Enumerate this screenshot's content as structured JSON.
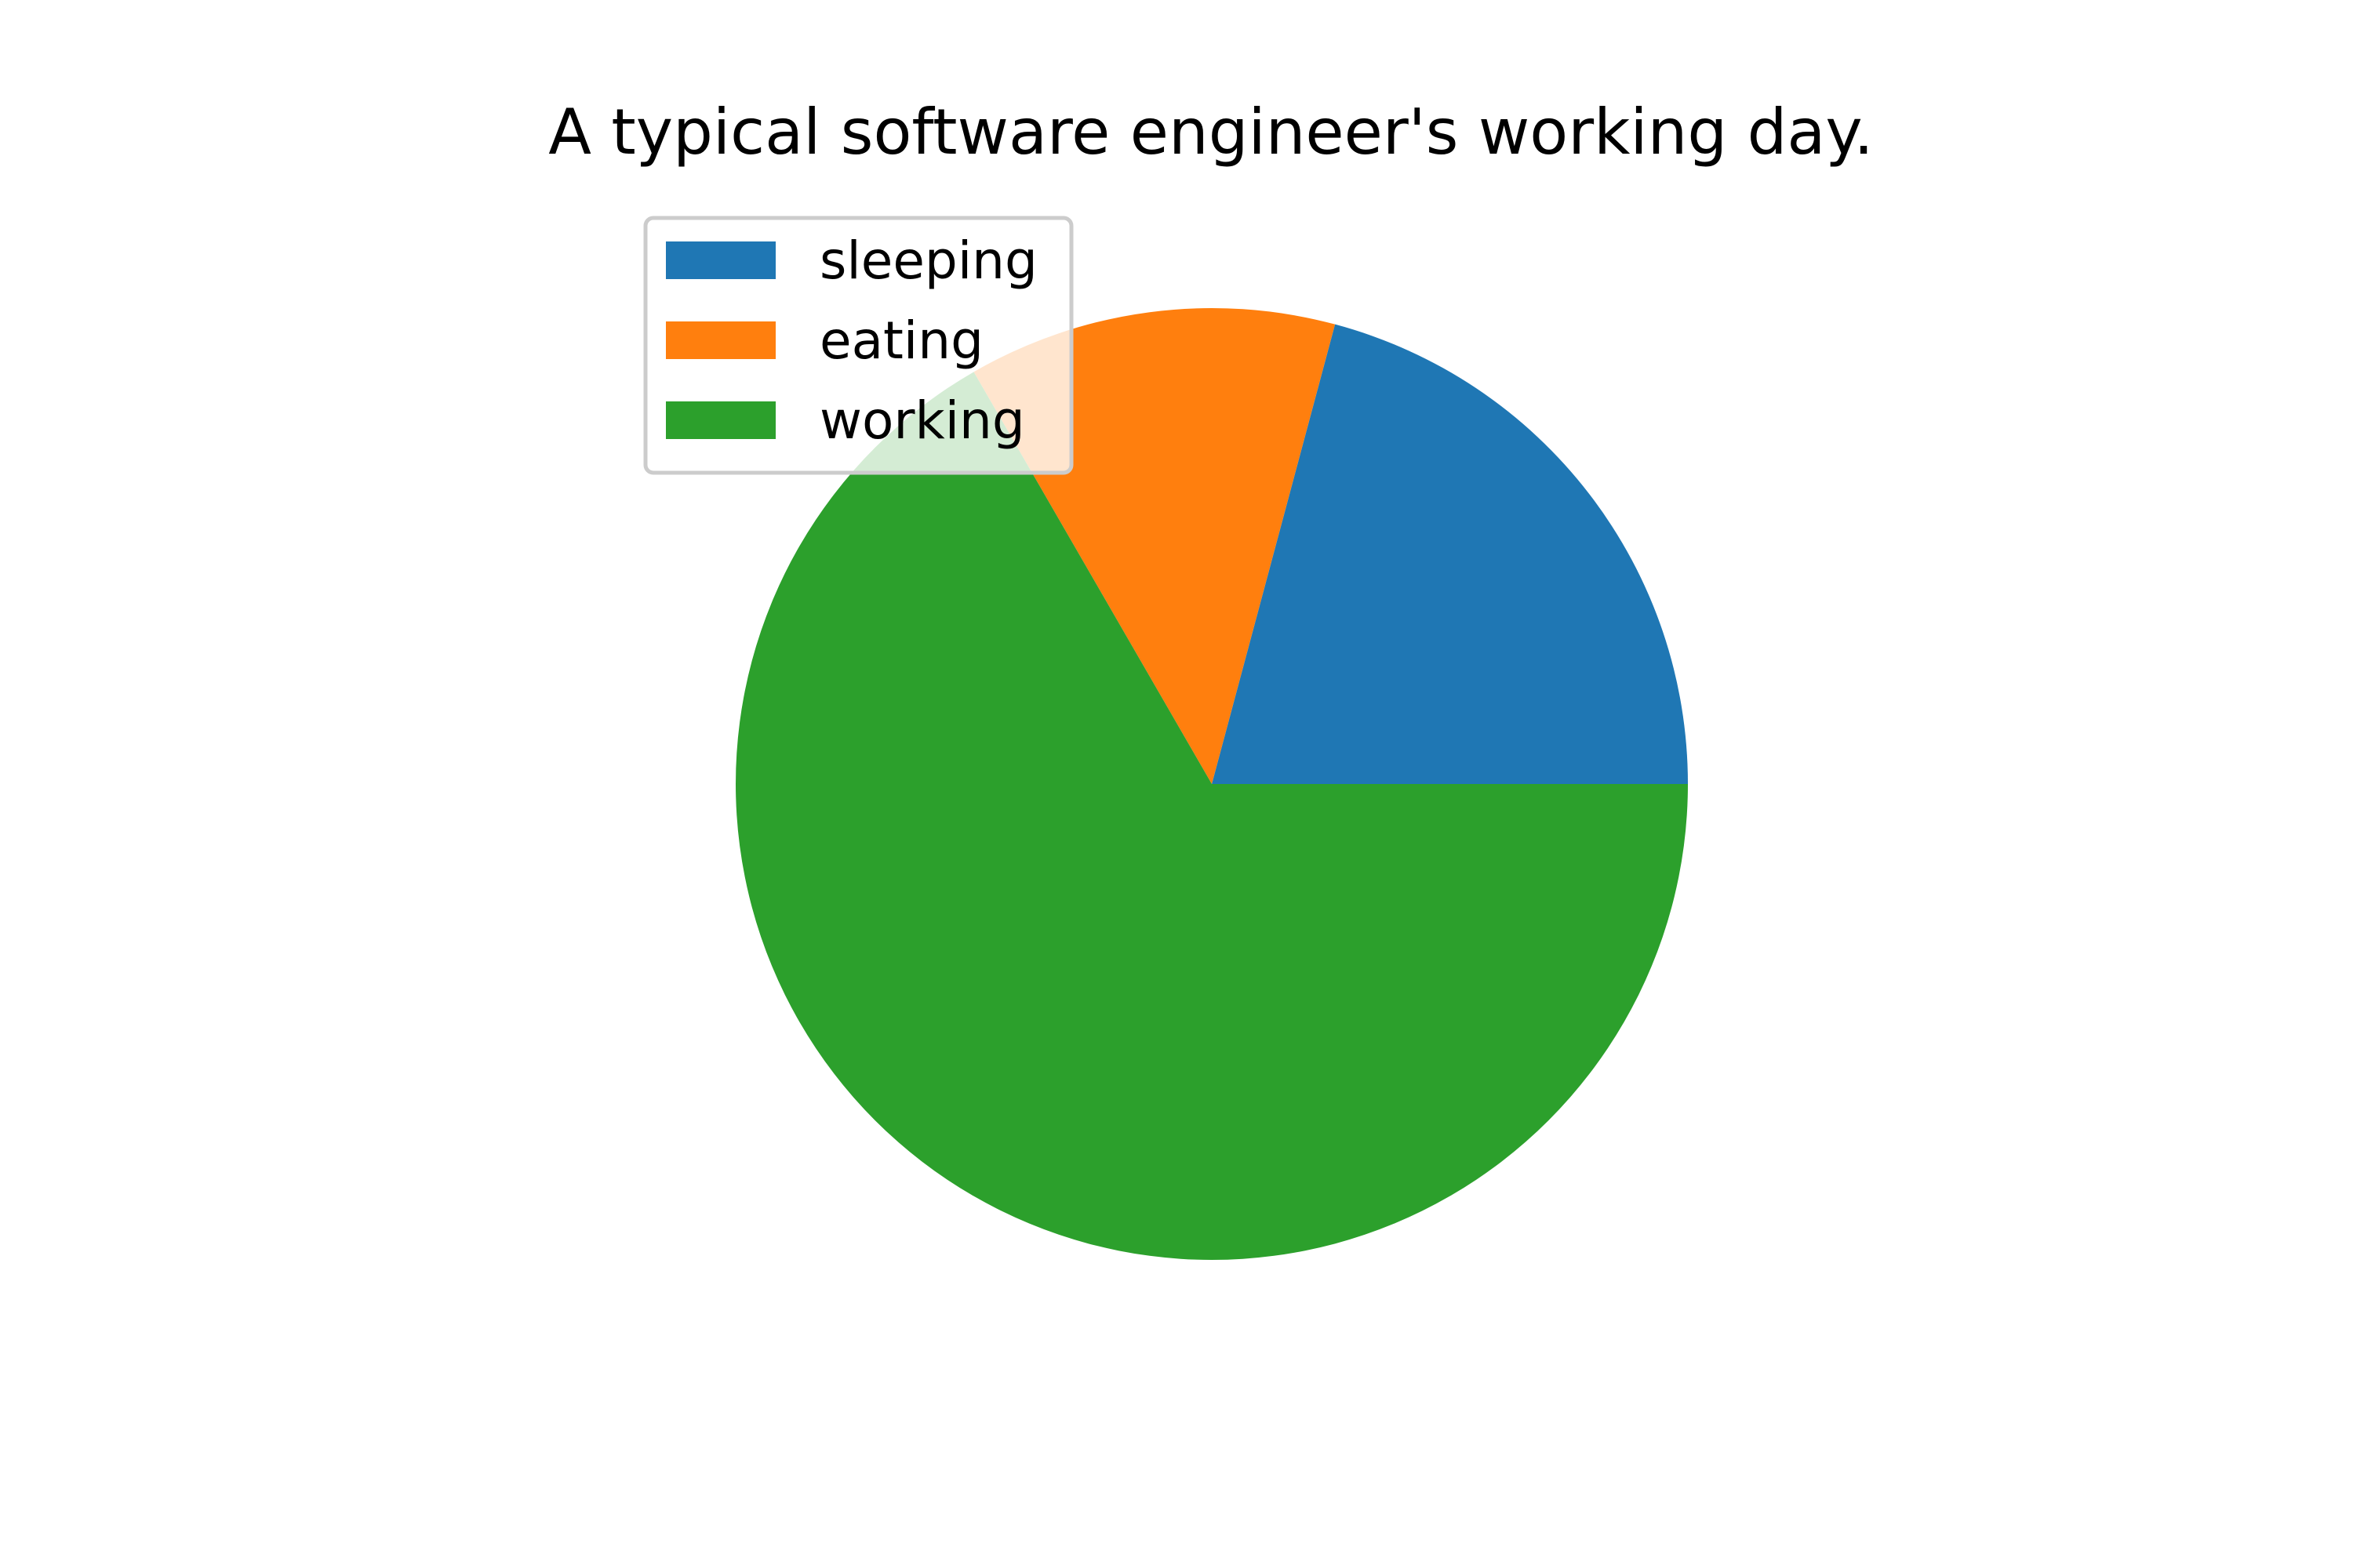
{
  "chart_data": {
    "type": "pie",
    "title": "A typical software engineer's working day.",
    "categories": [
      "sleeping",
      "eating",
      "working"
    ],
    "values": [
      5,
      3,
      16
    ],
    "colors": [
      "#1f77b4",
      "#ff7f0e",
      "#2ca02c"
    ],
    "start_angle_deg": 0,
    "direction": "counterclockwise",
    "legend": {
      "placement": "upper-left",
      "entries": [
        "sleeping",
        "eating",
        "working"
      ]
    }
  }
}
